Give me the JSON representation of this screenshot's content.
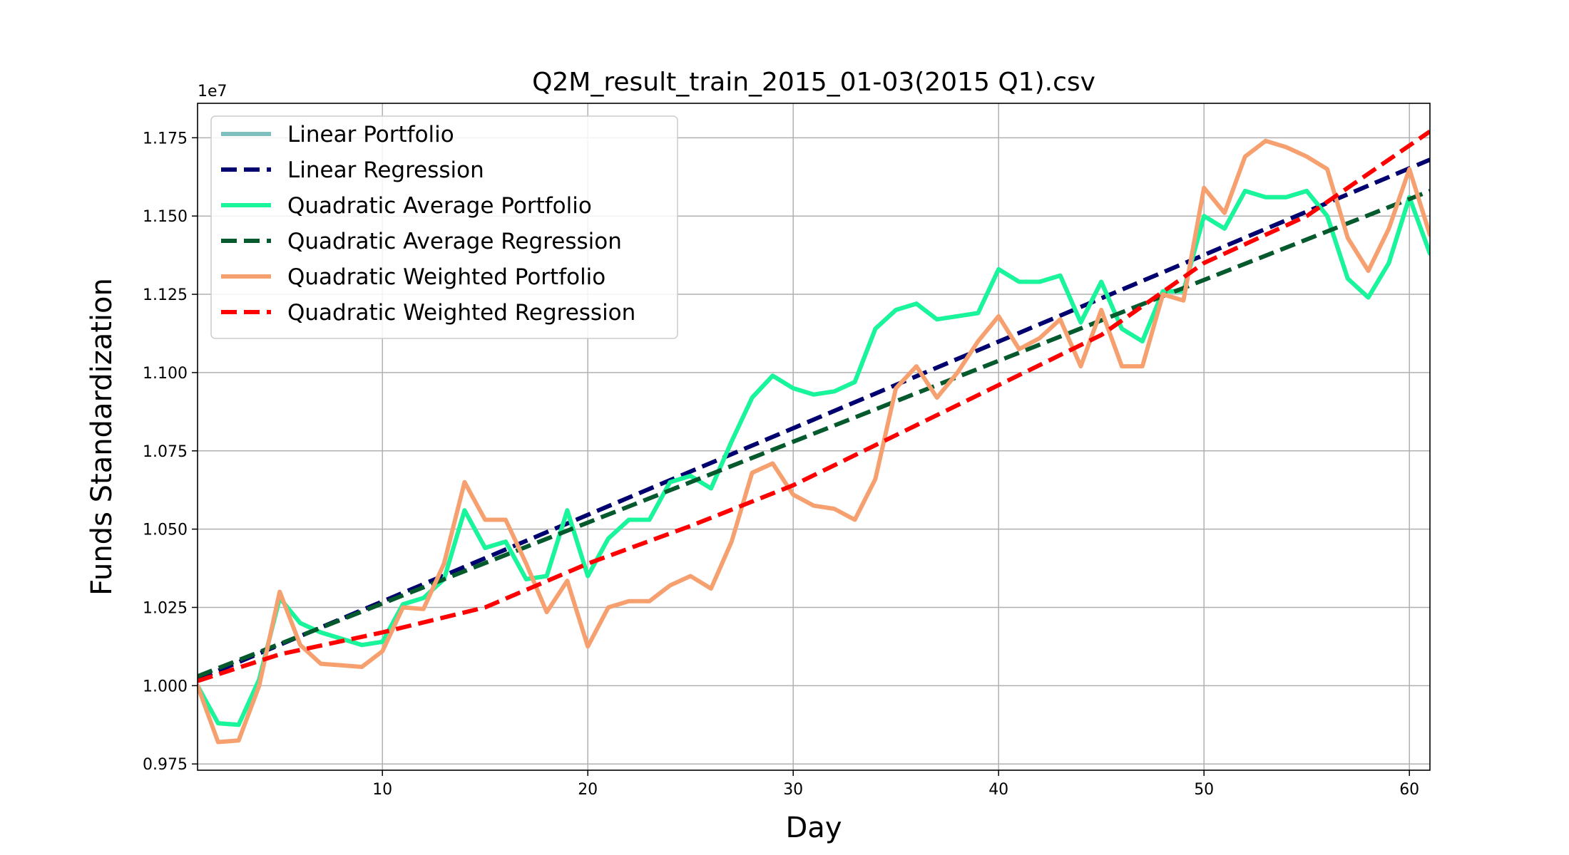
{
  "chart_data": {
    "type": "line",
    "title": "Q2M_result_train_2015_01-03(2015 Q1).csv",
    "xlabel": "Day",
    "ylabel": "Funds Standardization",
    "y_offset_label": "1e7",
    "xlim": [
      1,
      61
    ],
    "ylim": [
      9730000,
      11860000
    ],
    "x_ticks": [
      10,
      20,
      30,
      40,
      50,
      60
    ],
    "y_ticks": [
      9750000,
      10000000,
      10250000,
      10500000,
      10750000,
      11000000,
      11250000,
      11500000,
      11750000
    ],
    "y_tick_labels": [
      "0.975",
      "1.000",
      "1.025",
      "1.050",
      "1.075",
      "1.100",
      "1.125",
      "1.150",
      "1.175"
    ],
    "grid": true,
    "legend_position": "upper-left",
    "series": [
      {
        "name": "Linear Portfolio",
        "color": "#7fbfbf",
        "style": "solid",
        "x": [
          1,
          2,
          3,
          4,
          5,
          6,
          7,
          8,
          9,
          10,
          11,
          12,
          13,
          14,
          15,
          16,
          17,
          18,
          19,
          20,
          21,
          22,
          23,
          24,
          25,
          26,
          27,
          28,
          29,
          30,
          31,
          32,
          33,
          34,
          35,
          36,
          37,
          38,
          39,
          40,
          41,
          42,
          43,
          44,
          45,
          46,
          47,
          48,
          49,
          50,
          51,
          52,
          53,
          54,
          55,
          56,
          57,
          58,
          59,
          60,
          61
        ],
        "values": [
          10000000,
          9880000,
          9875000,
          10020000,
          10280000,
          10200000,
          10170000,
          10150000,
          10130000,
          10140000,
          10260000,
          10280000,
          10340000,
          10560000,
          10440000,
          10460000,
          10340000,
          10350000,
          10560000,
          10350000,
          10470000,
          10530000,
          10530000,
          10650000,
          10670000,
          10630000,
          10780000,
          10920000,
          10990000,
          10950000,
          10930000,
          10940000,
          10970000,
          11140000,
          11200000,
          11220000,
          11170000,
          11180000,
          11190000,
          11330000,
          11290000,
          11290000,
          11310000,
          11160000,
          11290000,
          11140000,
          11100000,
          11260000,
          11260000,
          11500000,
          11460000,
          11580000,
          11560000,
          11560000,
          11580000,
          11500000,
          11300000,
          11240000,
          11350000,
          11560000,
          11380000
        ]
      },
      {
        "name": "Linear Regression",
        "color": "#00006e",
        "style": "dashed",
        "x": [
          1,
          61
        ],
        "values": [
          10020000,
          11680000
        ]
      },
      {
        "name": "Quadratic Average Portfolio",
        "color": "#19f59a",
        "style": "solid",
        "x": [
          1,
          2,
          3,
          4,
          5,
          6,
          7,
          8,
          9,
          10,
          11,
          12,
          13,
          14,
          15,
          16,
          17,
          18,
          19,
          20,
          21,
          22,
          23,
          24,
          25,
          26,
          27,
          28,
          29,
          30,
          31,
          32,
          33,
          34,
          35,
          36,
          37,
          38,
          39,
          40,
          41,
          42,
          43,
          44,
          45,
          46,
          47,
          48,
          49,
          50,
          51,
          52,
          53,
          54,
          55,
          56,
          57,
          58,
          59,
          60,
          61
        ],
        "values": [
          10000000,
          9880000,
          9875000,
          10020000,
          10280000,
          10200000,
          10170000,
          10150000,
          10130000,
          10140000,
          10260000,
          10280000,
          10340000,
          10560000,
          10440000,
          10460000,
          10340000,
          10350000,
          10560000,
          10350000,
          10470000,
          10530000,
          10530000,
          10650000,
          10670000,
          10630000,
          10780000,
          10920000,
          10990000,
          10950000,
          10930000,
          10940000,
          10970000,
          11140000,
          11200000,
          11220000,
          11170000,
          11180000,
          11190000,
          11330000,
          11290000,
          11290000,
          11310000,
          11160000,
          11290000,
          11140000,
          11100000,
          11260000,
          11260000,
          11500000,
          11460000,
          11580000,
          11560000,
          11560000,
          11580000,
          11500000,
          11300000,
          11240000,
          11350000,
          11560000,
          11380000
        ]
      },
      {
        "name": "Quadratic Average Regression",
        "color": "#055a2d",
        "style": "dashed",
        "x": [
          1,
          61
        ],
        "values": [
          10030000,
          11580000
        ]
      },
      {
        "name": "Quadratic Weighted Portfolio",
        "color": "#f6a070",
        "style": "solid",
        "x": [
          1,
          2,
          3,
          4,
          5,
          6,
          7,
          8,
          9,
          10,
          11,
          12,
          13,
          14,
          15,
          16,
          17,
          18,
          19,
          20,
          21,
          22,
          23,
          24,
          25,
          26,
          27,
          28,
          29,
          30,
          31,
          32,
          33,
          34,
          35,
          36,
          37,
          38,
          39,
          40,
          41,
          42,
          43,
          44,
          45,
          46,
          47,
          48,
          49,
          50,
          51,
          52,
          53,
          54,
          55,
          56,
          57,
          58,
          59,
          60,
          61
        ],
        "values": [
          10000000,
          9820000,
          9825000,
          10000000,
          10300000,
          10130000,
          10070000,
          10065000,
          10060000,
          10110000,
          10250000,
          10245000,
          10390000,
          10650000,
          10530000,
          10530000,
          10390000,
          10235000,
          10335000,
          10125000,
          10250000,
          10270000,
          10270000,
          10320000,
          10350000,
          10310000,
          10460000,
          10680000,
          10710000,
          10610000,
          10575000,
          10565000,
          10530000,
          10660000,
          10950000,
          11020000,
          10920000,
          11000000,
          11100000,
          11180000,
          11075000,
          11110000,
          11170000,
          11020000,
          11200000,
          11020000,
          11020000,
          11250000,
          11230000,
          11590000,
          11510000,
          11690000,
          11740000,
          11720000,
          11690000,
          11650000,
          11430000,
          11325000,
          11460000,
          11650000,
          11440000
        ]
      },
      {
        "name": "Quadratic Weighted Regression",
        "color": "#ff0000",
        "style": "dashed",
        "x": [
          1,
          5,
          10,
          15,
          20,
          25,
          30,
          35,
          40,
          45,
          50,
          55,
          61
        ],
        "values": [
          10015000,
          10100000,
          10170000,
          10250000,
          10390000,
          10510000,
          10640000,
          10800000,
          10960000,
          11120000,
          11350000,
          11500000,
          11770000
        ]
      }
    ]
  }
}
